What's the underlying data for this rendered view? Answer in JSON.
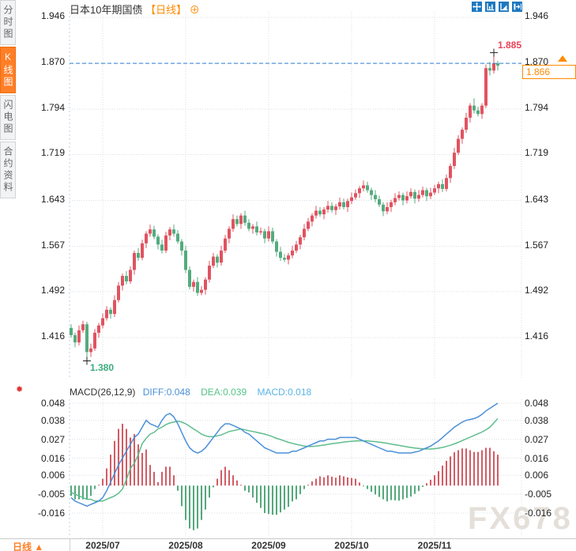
{
  "header": {
    "title": "日本10年期国债",
    "period_tag": "【日线】",
    "plus": "⊕"
  },
  "sidebar": {
    "items": [
      {
        "label": "分时图",
        "active": false
      },
      {
        "label": "K线图",
        "active": true
      },
      {
        "label": "闪电图",
        "active": false
      },
      {
        "label": "合约资料",
        "active": false
      }
    ]
  },
  "toolbar": {
    "icons": [
      "crosshair-icon",
      "y-scale-chart-icon",
      "x-scale-chart-icon",
      "pan-right-icon"
    ]
  },
  "price_markers": {
    "high_label": "1.885",
    "low_label": "1.380",
    "last_price": "1.866",
    "up_arrow": "▲"
  },
  "macd_header": {
    "name": "MACD(26,12,9)",
    "diff": "DIFF:0.048",
    "dea": "DEA:0.039",
    "macd": "MACD:0.018"
  },
  "bottom_bar": {
    "period_label": "日线",
    "arrow": "▲"
  },
  "watermark": "FX678",
  "indicator_icon": "✹",
  "colors": {
    "up": "#e15360",
    "down": "#54ab7e",
    "hist_up": "#d35c65",
    "hist_down": "#54a87b",
    "diff_line": "#4a90d9",
    "dea_line": "#5ebd8d",
    "dashed_line": "#2a7fd4",
    "accent": "#ff7f27",
    "toolbar_blue": "#1d78c1",
    "grid": "#d9dde3",
    "edge": "#bcd2e8"
  },
  "chart_data": {
    "type": "candlestick+macd",
    "title": "日本10年期国债 日线",
    "x_axis": {
      "labels": [
        "2025/07",
        "2025/08",
        "2025/09",
        "2025/10",
        "2025/11"
      ],
      "label_candle_indices": [
        8,
        29,
        50,
        71,
        92
      ]
    },
    "main_pane": {
      "y_ticks": [
        "1.946",
        "1.870",
        "1.794",
        "1.719",
        "1.643",
        "1.567",
        "1.492",
        "1.416"
      ],
      "ylim": [
        1.38,
        1.946
      ],
      "dashed_line_value": 1.87,
      "last_price": 1.866,
      "high_marker": {
        "index": 107,
        "value": 1.885
      },
      "low_marker": {
        "index": 4,
        "value": 1.38
      },
      "candles": [
        [
          1.432,
          1.438,
          1.416,
          1.42
        ],
        [
          1.42,
          1.424,
          1.4,
          1.408
        ],
        [
          1.408,
          1.436,
          1.403,
          1.428
        ],
        [
          1.428,
          1.444,
          1.424,
          1.438
        ],
        [
          1.438,
          1.442,
          1.38,
          1.392
        ],
        [
          1.392,
          1.406,
          1.384,
          1.398
        ],
        [
          1.398,
          1.43,
          1.394,
          1.424
        ],
        [
          1.424,
          1.44,
          1.416,
          1.436
        ],
        [
          1.436,
          1.456,
          1.431,
          1.448
        ],
        [
          1.448,
          1.468,
          1.444,
          1.462
        ],
        [
          1.462,
          1.466,
          1.447,
          1.455
        ],
        [
          1.455,
          1.486,
          1.45,
          1.478
        ],
        [
          1.478,
          1.508,
          1.474,
          1.502
        ],
        [
          1.502,
          1.522,
          1.494,
          1.518
        ],
        [
          1.518,
          1.526,
          1.504,
          1.509
        ],
        [
          1.509,
          1.534,
          1.505,
          1.528
        ],
        [
          1.528,
          1.56,
          1.52,
          1.556
        ],
        [
          1.556,
          1.564,
          1.543,
          1.548
        ],
        [
          1.548,
          1.578,
          1.544,
          1.572
        ],
        [
          1.572,
          1.592,
          1.564,
          1.588
        ],
        [
          1.588,
          1.603,
          1.583,
          1.595
        ],
        [
          1.595,
          1.601,
          1.579,
          1.583
        ],
        [
          1.583,
          1.587,
          1.562,
          1.57
        ],
        [
          1.57,
          1.578,
          1.555,
          1.56
        ],
        [
          1.56,
          1.591,
          1.556,
          1.585
        ],
        [
          1.585,
          1.599,
          1.577,
          1.595
        ],
        [
          1.595,
          1.603,
          1.583,
          1.588
        ],
        [
          1.588,
          1.594,
          1.571,
          1.575
        ],
        [
          1.575,
          1.579,
          1.552,
          1.56
        ],
        [
          1.56,
          1.568,
          1.523,
          1.528
        ],
        [
          1.528,
          1.534,
          1.496,
          1.5
        ],
        [
          1.5,
          1.512,
          1.492,
          1.508
        ],
        [
          1.508,
          1.516,
          1.485,
          1.49
        ],
        [
          1.49,
          1.501,
          1.486,
          1.495
        ],
        [
          1.495,
          1.516,
          1.487,
          1.512
        ],
        [
          1.512,
          1.543,
          1.507,
          1.535
        ],
        [
          1.535,
          1.556,
          1.531,
          1.55
        ],
        [
          1.55,
          1.554,
          1.532,
          1.54
        ],
        [
          1.54,
          1.568,
          1.535,
          1.56
        ],
        [
          1.56,
          1.586,
          1.556,
          1.58
        ],
        [
          1.58,
          1.6,
          1.572,
          1.596
        ],
        [
          1.596,
          1.62,
          1.591,
          1.612
        ],
        [
          1.612,
          1.618,
          1.6,
          1.604
        ],
        [
          1.604,
          1.622,
          1.596,
          1.618
        ],
        [
          1.618,
          1.626,
          1.601,
          1.606
        ],
        [
          1.606,
          1.612,
          1.592,
          1.596
        ],
        [
          1.596,
          1.604,
          1.588,
          1.6
        ],
        [
          1.6,
          1.608,
          1.585,
          1.59
        ],
        [
          1.59,
          1.598,
          1.586,
          1.592
        ],
        [
          1.592,
          1.596,
          1.572,
          1.58
        ],
        [
          1.58,
          1.6,
          1.575,
          1.592
        ],
        [
          1.592,
          1.598,
          1.571,
          1.575
        ],
        [
          1.575,
          1.579,
          1.55,
          1.558
        ],
        [
          1.558,
          1.566,
          1.543,
          1.548
        ],
        [
          1.548,
          1.554,
          1.541,
          1.545
        ],
        [
          1.545,
          1.556,
          1.537,
          1.552
        ],
        [
          1.552,
          1.568,
          1.547,
          1.56
        ],
        [
          1.56,
          1.576,
          1.556,
          1.57
        ],
        [
          1.57,
          1.586,
          1.562,
          1.582
        ],
        [
          1.582,
          1.604,
          1.577,
          1.596
        ],
        [
          1.596,
          1.614,
          1.592,
          1.608
        ],
        [
          1.608,
          1.622,
          1.6,
          1.618
        ],
        [
          1.618,
          1.634,
          1.613,
          1.626
        ],
        [
          1.626,
          1.632,
          1.616,
          1.62
        ],
        [
          1.62,
          1.632,
          1.612,
          1.628
        ],
        [
          1.628,
          1.642,
          1.623,
          1.634
        ],
        [
          1.634,
          1.64,
          1.623,
          1.627
        ],
        [
          1.627,
          1.637,
          1.619,
          1.633
        ],
        [
          1.633,
          1.648,
          1.628,
          1.64
        ],
        [
          1.64,
          1.646,
          1.628,
          1.632
        ],
        [
          1.632,
          1.646,
          1.624,
          1.642
        ],
        [
          1.642,
          1.656,
          1.637,
          1.648
        ],
        [
          1.648,
          1.661,
          1.644,
          1.655
        ],
        [
          1.655,
          1.667,
          1.647,
          1.663
        ],
        [
          1.663,
          1.676,
          1.658,
          1.668
        ],
        [
          1.668,
          1.674,
          1.656,
          1.66
        ],
        [
          1.66,
          1.664,
          1.644,
          1.652
        ],
        [
          1.652,
          1.66,
          1.64,
          1.645
        ],
        [
          1.645,
          1.651,
          1.632,
          1.636
        ],
        [
          1.636,
          1.64,
          1.617,
          1.625
        ],
        [
          1.625,
          1.64,
          1.62,
          1.632
        ],
        [
          1.632,
          1.644,
          1.624,
          1.64
        ],
        [
          1.64,
          1.655,
          1.635,
          1.647
        ],
        [
          1.647,
          1.658,
          1.643,
          1.652
        ],
        [
          1.652,
          1.656,
          1.635,
          1.643
        ],
        [
          1.643,
          1.658,
          1.638,
          1.65
        ],
        [
          1.65,
          1.663,
          1.646,
          1.657
        ],
        [
          1.657,
          1.661,
          1.638,
          1.646
        ],
        [
          1.646,
          1.66,
          1.641,
          1.652
        ],
        [
          1.652,
          1.666,
          1.648,
          1.66
        ],
        [
          1.66,
          1.664,
          1.642,
          1.65
        ],
        [
          1.65,
          1.664,
          1.645,
          1.656
        ],
        [
          1.656,
          1.669,
          1.652,
          1.663
        ],
        [
          1.663,
          1.674,
          1.655,
          1.67
        ],
        [
          1.67,
          1.678,
          1.657,
          1.662
        ],
        [
          1.662,
          1.686,
          1.658,
          1.68
        ],
        [
          1.68,
          1.704,
          1.672,
          1.7
        ],
        [
          1.7,
          1.73,
          1.695,
          1.722
        ],
        [
          1.722,
          1.751,
          1.718,
          1.745
        ],
        [
          1.745,
          1.764,
          1.737,
          1.76
        ],
        [
          1.76,
          1.788,
          1.755,
          1.78
        ],
        [
          1.78,
          1.804,
          1.772,
          1.8
        ],
        [
          1.8,
          1.812,
          1.787,
          1.792
        ],
        [
          1.792,
          1.798,
          1.782,
          1.786
        ],
        [
          1.786,
          1.804,
          1.778,
          1.8
        ],
        [
          1.8,
          1.868,
          1.796,
          1.862
        ],
        [
          1.862,
          1.872,
          1.85,
          1.858
        ],
        [
          1.858,
          1.885,
          1.853,
          1.87
        ],
        [
          1.87,
          1.874,
          1.858,
          1.866
        ]
      ]
    },
    "macd_pane": {
      "y_ticks": [
        "0.048",
        "0.038",
        "0.027",
        "0.016",
        "0.006",
        "-0.005",
        "-0.016"
      ],
      "diff": [
        -0.007,
        -0.009,
        -0.01,
        -0.011,
        -0.012,
        -0.011,
        -0.01,
        -0.009,
        -0.007,
        -0.003,
        0.002,
        0.007,
        0.012,
        0.016,
        0.02,
        0.024,
        0.028,
        0.03,
        0.034,
        0.038,
        0.036,
        0.035,
        0.034,
        0.038,
        0.041,
        0.042,
        0.04,
        0.036,
        0.031,
        0.026,
        0.022,
        0.02,
        0.019,
        0.02,
        0.022,
        0.025,
        0.028,
        0.031,
        0.034,
        0.036,
        0.036,
        0.035,
        0.034,
        0.033,
        0.031,
        0.03,
        0.028,
        0.026,
        0.024,
        0.022,
        0.021,
        0.02,
        0.019,
        0.019,
        0.019,
        0.019,
        0.02,
        0.02,
        0.021,
        0.022,
        0.023,
        0.024,
        0.025,
        0.026,
        0.026,
        0.027,
        0.027,
        0.027,
        0.028,
        0.028,
        0.028,
        0.028,
        0.028,
        0.027,
        0.026,
        0.025,
        0.024,
        0.023,
        0.022,
        0.021,
        0.02,
        0.02,
        0.0195,
        0.019,
        0.019,
        0.019,
        0.019,
        0.0195,
        0.02,
        0.021,
        0.022,
        0.023,
        0.0245,
        0.026,
        0.028,
        0.03,
        0.032,
        0.034,
        0.0355,
        0.037,
        0.038,
        0.0385,
        0.039,
        0.04,
        0.0415,
        0.0435,
        0.045,
        0.0465,
        0.048
      ],
      "dea": [
        -0.004,
        -0.005,
        -0.006,
        -0.007,
        -0.008,
        -0.008,
        -0.009,
        -0.009,
        -0.009,
        -0.008,
        -0.007,
        -0.006,
        -0.0045,
        -0.002,
        0.0035,
        0.01,
        0.013,
        0.018,
        0.0245,
        0.0275,
        0.03,
        0.031,
        0.033,
        0.034,
        0.0355,
        0.0365,
        0.037,
        0.0375,
        0.037,
        0.036,
        0.0345,
        0.033,
        0.0315,
        0.03,
        0.029,
        0.0285,
        0.0285,
        0.029,
        0.0295,
        0.0305,
        0.0315,
        0.032,
        0.0325,
        0.033,
        0.0325,
        0.032,
        0.0315,
        0.031,
        0.0305,
        0.03,
        0.0293,
        0.0285,
        0.0275,
        0.0268,
        0.026,
        0.0252,
        0.0246,
        0.024,
        0.0235,
        0.023,
        0.0228,
        0.0228,
        0.023,
        0.0233,
        0.0236,
        0.024,
        0.0244,
        0.0247,
        0.025,
        0.0253,
        0.0256,
        0.0258,
        0.026,
        0.0261,
        0.0261,
        0.026,
        0.0258,
        0.0256,
        0.0253,
        0.025,
        0.0246,
        0.0242,
        0.0238,
        0.0234,
        0.023,
        0.0226,
        0.0222,
        0.0219,
        0.0216,
        0.0214,
        0.0213,
        0.0213,
        0.0215,
        0.0218,
        0.0222,
        0.0228,
        0.0235,
        0.0243,
        0.0252,
        0.0262,
        0.0272,
        0.0282,
        0.0292,
        0.0302,
        0.0312,
        0.0325,
        0.034,
        0.0365,
        0.039
      ],
      "hist": [
        -0.006,
        -0.008,
        -0.008,
        -0.008,
        -0.008,
        -0.006,
        -0.002,
        0.0,
        0.004,
        0.01,
        0.018,
        0.026,
        0.033,
        0.036,
        0.033,
        0.028,
        0.03,
        0.024,
        0.019,
        0.021,
        0.012,
        0.008,
        0.002,
        0.008,
        0.011,
        0.011,
        0.006,
        -0.003,
        -0.012,
        -0.02,
        -0.025,
        -0.026,
        -0.025,
        -0.02,
        -0.014,
        -0.007,
        -0.001,
        0.004,
        0.009,
        0.011,
        0.009,
        0.006,
        0.003,
        0.0,
        -0.003,
        -0.004,
        -0.007,
        -0.01,
        -0.013,
        -0.016,
        -0.0166,
        -0.017,
        -0.017,
        -0.0156,
        -0.014,
        -0.0124,
        -0.0092,
        -0.008,
        -0.005,
        -0.002,
        0.0004,
        0.0024,
        0.004,
        0.0054,
        0.0048,
        0.006,
        0.0052,
        0.0046,
        0.006,
        0.0054,
        0.0048,
        0.0044,
        0.004,
        0.0018,
        -0.0002,
        -0.002,
        -0.0036,
        -0.0052,
        -0.0066,
        -0.008,
        -0.0092,
        -0.0084,
        -0.0086,
        -0.0088,
        -0.008,
        -0.0072,
        -0.0064,
        -0.0048,
        -0.0032,
        -0.0008,
        0.0014,
        0.0034,
        0.006,
        0.0084,
        0.0116,
        0.0144,
        0.017,
        0.0194,
        0.0206,
        0.0216,
        0.0216,
        0.0206,
        0.0196,
        0.0196,
        0.0206,
        0.022,
        0.022,
        0.02,
        0.018
      ]
    }
  }
}
